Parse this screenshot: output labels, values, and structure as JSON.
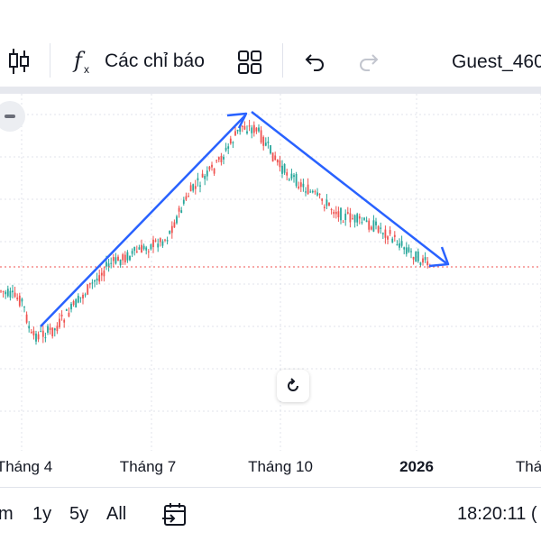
{
  "toolbar": {
    "indicators_label": "Các chỉ báo",
    "user_label": "Guest_460"
  },
  "time_axis": {
    "ticks": [
      "Tháng 4",
      "Tháng 7",
      "Tháng 10",
      "2026",
      "Tháng"
    ]
  },
  "bottom_bar": {
    "ranges": [
      "m",
      "1y",
      "5y",
      "All"
    ],
    "clock": "18:20:11 ("
  },
  "colors": {
    "up": "#26a69a",
    "down": "#ef5350",
    "trend_line": "#2962ff",
    "price_line": "#ef5350",
    "grid": "#e0e3eb"
  },
  "icons": [
    "candlestick-icon",
    "fx-icon",
    "grid-icon",
    "undo-icon",
    "redo-icon",
    "refresh-icon",
    "calendar-range-icon"
  ]
}
